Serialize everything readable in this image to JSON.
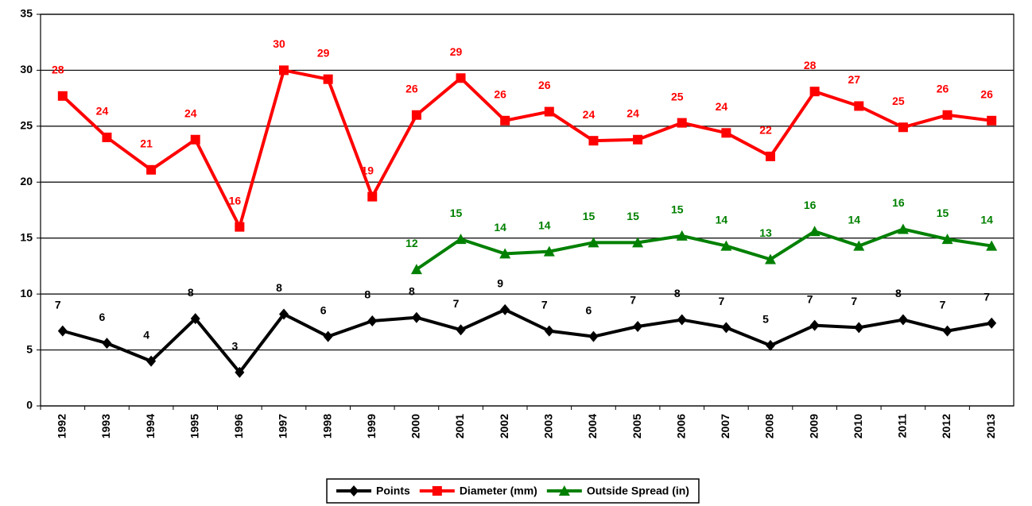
{
  "chart_data": {
    "type": "line",
    "categories": [
      "1992",
      "1993",
      "1994",
      "1995",
      "1996",
      "1997",
      "1998",
      "1999",
      "2000",
      "2001",
      "2002",
      "2003",
      "2004",
      "2005",
      "2006",
      "2007",
      "2008",
      "2009",
      "2010",
      "2011",
      "2012",
      "2013"
    ],
    "series": [
      {
        "name": "Points",
        "color": "#000000",
        "marker": "diamond",
        "values": [
          6.7,
          5.6,
          4.0,
          7.8,
          3.0,
          8.2,
          6.2,
          7.6,
          7.9,
          6.8,
          8.6,
          6.7,
          6.2,
          7.1,
          7.7,
          7.0,
          5.4,
          7.2,
          7.0,
          7.7,
          6.7,
          7.4
        ],
        "value_labels": [
          "7",
          "6",
          "4",
          "8",
          "3",
          "8",
          "6",
          "8",
          "8",
          "7",
          "9",
          "7",
          "6",
          "7",
          "8",
          "7",
          "5",
          "7",
          "7",
          "8",
          "7",
          "7"
        ]
      },
      {
        "name": "Diameter (mm)",
        "color": "#ff0000",
        "marker": "square",
        "values": [
          27.7,
          24.0,
          21.1,
          23.8,
          16.0,
          30.0,
          29.2,
          18.7,
          26.0,
          29.3,
          25.5,
          26.3,
          23.7,
          23.8,
          25.3,
          24.4,
          22.3,
          28.1,
          26.8,
          24.9,
          26.0,
          25.5
        ],
        "value_labels": [
          "28",
          "24",
          "21",
          "24",
          "16",
          "30",
          "29",
          "19",
          "26",
          "29",
          "26",
          "26",
          "24",
          "24",
          "25",
          "24",
          "22",
          "28",
          "27",
          "25",
          "26",
          "26"
        ]
      },
      {
        "name": "Outside Spread (in)",
        "color": "#008000",
        "marker": "triangle",
        "values": [
          null,
          null,
          null,
          null,
          null,
          null,
          null,
          null,
          12.2,
          14.9,
          13.6,
          13.8,
          14.6,
          14.6,
          15.2,
          14.3,
          13.1,
          15.6,
          14.3,
          15.8,
          14.9,
          14.3
        ],
        "value_labels": [
          null,
          null,
          null,
          null,
          null,
          null,
          null,
          null,
          "12",
          "15",
          "14",
          "14",
          "15",
          "15",
          "15",
          "14",
          "13",
          "16",
          "14",
          "16",
          "15",
          "14"
        ]
      }
    ],
    "ylim": [
      0,
      35
    ],
    "yticks": [
      0,
      5,
      10,
      15,
      20,
      25,
      30,
      35
    ],
    "grid": true,
    "legend": "bottom"
  }
}
